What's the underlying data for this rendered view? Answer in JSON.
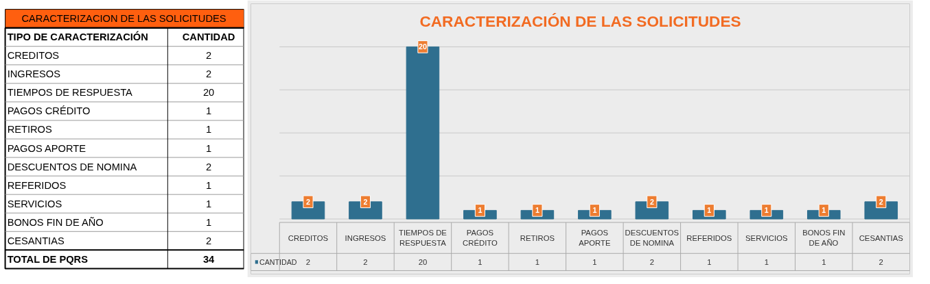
{
  "chart_data": [
    {
      "type": "other",
      "title": "CARACTERIZACION DE LAS SOLICITUDES",
      "categories": [
        "CREDITOS",
        "INGRESOS",
        "TIEMPOS DE RESPUESTA",
        "PAGOS CRÉDITO",
        "RETIROS",
        "PAGOS APORTE",
        "DESCUENTOS DE NOMINA",
        "REFERIDOS",
        "SERVICIOS",
        "BONOS FIN DE AÑO",
        "CESANTIAS"
      ],
      "values": [
        2,
        2,
        20,
        1,
        1,
        1,
        2,
        1,
        1,
        1,
        2
      ],
      "annotations": [
        "TIPO DE CARACTERIZACIÓN",
        "CANTIDAD",
        "TOTAL DE PQRS",
        "34"
      ],
      "data_labels": true
    },
    {
      "type": "bar",
      "title": "CARACTERIZACIÓN DE LAS SOLICITUDES",
      "categories": [
        "CREDITOS",
        "INGRESOS",
        "TIEMPOS DE RESPUESTA",
        "PAGOS CRÉDITO",
        "RETIROS",
        "PAGOS APORTE",
        "DESCUENTOS DE NOMINA",
        "REFERIDOS",
        "SERVICIOS",
        "BONOS FIN DE AÑO",
        "CESANTIAS"
      ],
      "series": [
        {
          "name": "CANTIDAD",
          "color": "#2f6f8f",
          "values": [
            2,
            2,
            20,
            1,
            1,
            1,
            2,
            1,
            1,
            1,
            2
          ],
          "value_labels": [
            "2",
            "2",
            "20",
            "1",
            "1",
            "1",
            "2",
            "1",
            "1",
            "1",
            "2"
          ]
        }
      ],
      "yticks": [
        {
          "value": 0,
          "label": null
        },
        {
          "value": 5,
          "label": null
        },
        {
          "value": 10,
          "label": null
        },
        {
          "value": 15,
          "label": null
        },
        {
          "value": 20,
          "label": null
        }
      ],
      "grid": "y",
      "tick_labels": false
    },
    {
      "type": "other",
      "values": [
        2,
        2,
        20,
        1,
        1,
        1,
        2,
        1,
        1,
        1,
        2
      ],
      "data_labels": true
    }
  ]
}
